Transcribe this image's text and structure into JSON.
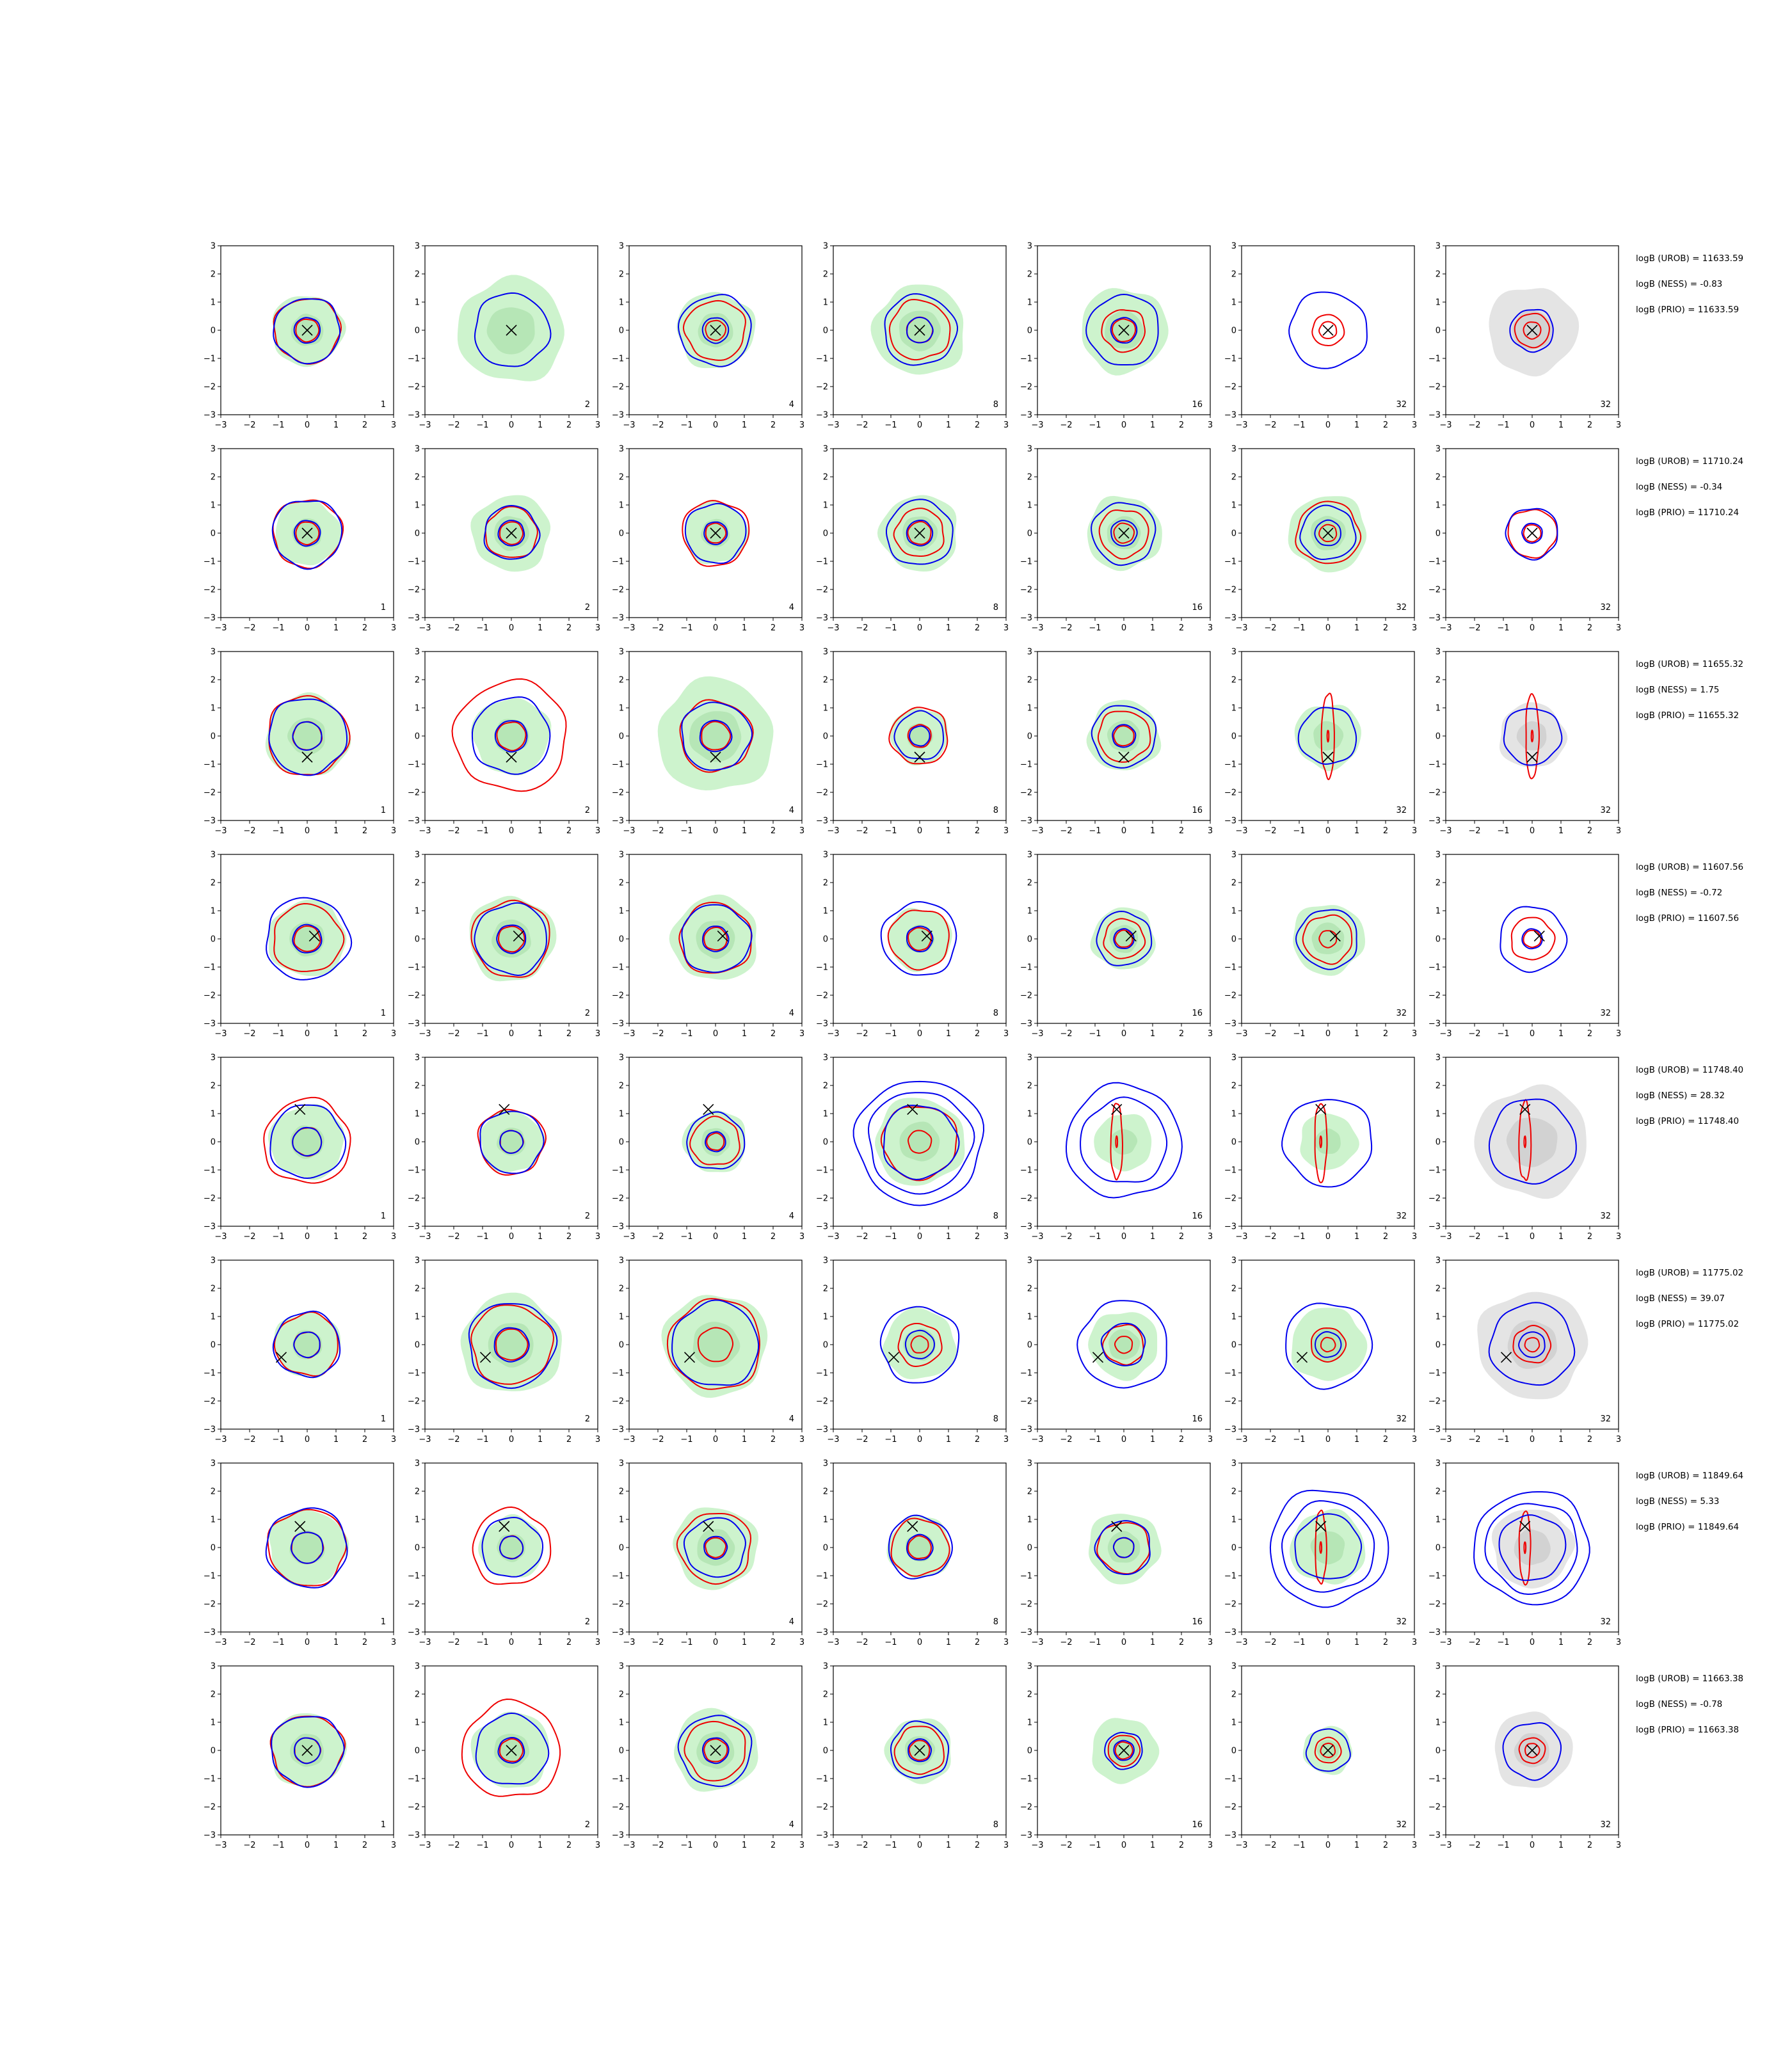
{
  "chart_data": {
    "type": "contour-grid",
    "rows": 8,
    "columns": 7,
    "xlim": [
      -3,
      3
    ],
    "ylim": [
      -3,
      3
    ],
    "x_ticks": [
      -3,
      -2,
      -1,
      0,
      1,
      2,
      3
    ],
    "y_ticks": [
      -3,
      -2,
      -1,
      0,
      1,
      2,
      3
    ],
    "x_tick_labels": [
      "−3",
      "−2",
      "−1",
      "0",
      "1",
      "2",
      "3"
    ],
    "y_tick_labels": [
      "−3",
      "−2",
      "−1",
      "0",
      "1",
      "2",
      "3"
    ],
    "panel_labels": [
      "1",
      "2",
      "4",
      "8",
      "16",
      "32",
      "32"
    ],
    "colors": {
      "blue_contour": "#0000ee",
      "red_contour": "#ee0000",
      "green_fill": "#cdf3cd",
      "green_fill_dark": "#b6e6b6",
      "grey_fill": "#e4e4e4",
      "grey_fill_dark": "#d2d2d2",
      "marker": "#000000",
      "axis": "#000000"
    },
    "marker_symbol": "×",
    "rows_data": [
      {
        "logB_UROB": "logB (UROB) = 11633.59",
        "logB_NESS": "logB (NESS) = -0.83",
        "logB_PRIO": "logB (PRIO) = 11633.59",
        "marker": [
          0,
          0
        ],
        "panels": [
          {
            "green": 1.25,
            "blue": [
              1.15,
              0.45
            ],
            "red": [
              1.15,
              0.4
            ]
          },
          {
            "green": 1.85,
            "blue": [
              1.3
            ],
            "red": []
          },
          {
            "green": 1.35,
            "blue": [
              1.25,
              0.45
            ],
            "red": [
              1.05,
              0.35
            ]
          },
          {
            "green": 1.6,
            "blue": [
              1.25,
              0.45
            ],
            "red": [
              1.05,
              0.45
            ]
          },
          {
            "green": 1.5,
            "blue": [
              1.25,
              0.45
            ],
            "red": [
              0.75,
              0.4
            ]
          },
          {
            "green": 0.0,
            "blue": [
              1.35
            ],
            "red": [
              0.55,
              0.3
            ]
          },
          {
            "grey": 1.55,
            "blue": [
              0.75
            ],
            "red": [
              0.6,
              0.3
            ]
          }
        ]
      },
      {
        "logB_UROB": "logB (UROB) = 11710.24",
        "logB_NESS": "logB (NESS) = -0.34",
        "logB_PRIO": "logB (PRIO) = 11710.24",
        "marker": [
          0,
          0
        ],
        "panels": [
          {
            "green": 1.15,
            "blue": [
              1.2,
              0.45
            ],
            "red": [
              1.2,
              0.4
            ]
          },
          {
            "green": 1.35,
            "blue": [
              0.95,
              0.45
            ],
            "red": [
              0.9,
              0.4
            ]
          },
          {
            "green": 1.1,
            "blue": [
              1.05,
              0.4
            ],
            "red": [
              1.15,
              0.35
            ]
          },
          {
            "green": 1.35,
            "blue": [
              1.15,
              0.45
            ],
            "red": [
              0.85,
              0.4
            ]
          },
          {
            "green": 1.3,
            "blue": [
              1.1,
              0.45
            ],
            "red": [
              0.85,
              0.35
            ]
          },
          {
            "green": 1.35,
            "blue": [
              0.95,
              0.45
            ],
            "red": [
              1.1,
              0.3
            ]
          },
          {
            "grey": 0.0,
            "blue": [
              0.9,
              0.35
            ],
            "red": [
              0.85,
              0.3
            ]
          }
        ]
      },
      {
        "logB_UROB": "logB (UROB) = 11655.32",
        "logB_NESS": "logB (NESS) = 1.75",
        "logB_PRIO": "logB (PRIO) = 11655.32",
        "marker": [
          0,
          -0.75
        ],
        "panels": [
          {
            "green": 1.45,
            "blue": [
              1.35,
              0.5
            ],
            "red": [
              1.4,
              0.5
            ]
          },
          {
            "green": 1.35,
            "blue": [
              1.35,
              0.55
            ],
            "red": [
              1.95,
              0.5
            ]
          },
          {
            "green": 2.0,
            "blue": [
              1.2,
              0.55
            ],
            "red": [
              1.25,
              0.5
            ]
          },
          {
            "green": 1.0,
            "blue": [
              0.85,
              0.35
            ],
            "red": [
              1.0,
              0.4
            ]
          },
          {
            "green": 1.25,
            "blue": [
              1.1,
              0.4
            ],
            "red": [
              0.9,
              0.35
            ]
          },
          {
            "green": 1.15,
            "blue": [
              1.0
            ],
            "red": [
              1.5,
              0.2
            ]
          },
          {
            "grey": 1.15,
            "blue": [
              1.0
            ],
            "red": [
              1.5,
              0.2
            ]
          }
        ]
      },
      {
        "logB_UROB": "logB (UROB) = 11607.56",
        "logB_NESS": "logB (NESS) = -0.72",
        "logB_PRIO": "logB (PRIO) = 11607.56",
        "marker": [
          0.25,
          0.1
        ],
        "panels": [
          {
            "green": 1.35,
            "blue": [
              1.45,
              0.5
            ],
            "red": [
              1.2,
              0.45
            ]
          },
          {
            "green": 1.5,
            "blue": [
              1.25,
              0.5
            ],
            "red": [
              1.35,
              0.45
            ]
          },
          {
            "green": 1.5,
            "blue": [
              1.2,
              0.45
            ],
            "red": [
              1.25,
              0.4
            ]
          },
          {
            "green": 1.1,
            "blue": [
              1.3,
              0.45
            ],
            "red": [
              1.05,
              0.4
            ]
          },
          {
            "green": 1.1,
            "blue": [
              0.95,
              0.35
            ],
            "red": [
              0.7,
              0.3
            ]
          },
          {
            "green": 1.25,
            "blue": [
              1.05
            ],
            "red": [
              0.85,
              0.3
            ]
          },
          {
            "grey": 0.0,
            "blue": [
              1.15,
              0.35
            ],
            "red": [
              0.75,
              0.3
            ]
          }
        ]
      },
      {
        "logB_UROB": "logB (UROB) = 11748.40",
        "logB_NESS": "logB (NESS) = 28.32",
        "logB_PRIO": "logB (PRIO) = 11748.40",
        "marker": [
          -0.25,
          1.15
        ],
        "panels": [
          {
            "green": 1.3,
            "blue": [
              1.3,
              0.5
            ],
            "red": [
              1.5,
              0.5
            ]
          },
          {
            "green": 1.1,
            "blue": [
              1.1,
              0.4
            ],
            "red": [
              1.15,
              0.4
            ]
          },
          {
            "green": 1.1,
            "blue": [
              1.0,
              0.35
            ],
            "red": [
              0.85,
              0.3
            ]
          },
          {
            "green": 1.55,
            "blue": [
              2.2,
              1.8,
              1.3
            ],
            "red": [
              1.3,
              0.4
            ]
          },
          {
            "green": 1.0,
            "blue": [
              2.0,
              1.5
            ],
            "red": [
              1.35,
              0.2
            ]
          },
          {
            "green": 1.0,
            "blue": [
              1.55
            ],
            "red": [
              1.4,
              0.2
            ]
          },
          {
            "grey": 1.95,
            "blue": [
              1.5
            ],
            "red": [
              1.4,
              0.2
            ]
          }
        ]
      },
      {
        "logB_UROB": "logB (UROB) = 11775.02",
        "logB_NESS": "logB (NESS) = 39.07",
        "logB_PRIO": "logB (PRIO) = 11775.02",
        "marker": [
          -0.9,
          -0.45
        ],
        "panels": [
          {
            "green": 1.15,
            "blue": [
              1.15,
              0.45
            ],
            "red": [
              1.1,
              0.45
            ]
          },
          {
            "green": 1.75,
            "blue": [
              1.5,
              0.6
            ],
            "red": [
              1.4,
              0.55
            ]
          },
          {
            "green": 1.8,
            "blue": [
              1.5
            ],
            "red": [
              1.6,
              0.6
            ]
          },
          {
            "green": 1.25,
            "blue": [
              1.35,
              0.5
            ],
            "red": [
              0.75,
              0.3
            ]
          },
          {
            "green": 1.2,
            "blue": [
              1.55,
              0.75
            ],
            "red": [
              0.7,
              0.3
            ]
          },
          {
            "green": 1.3,
            "blue": [
              1.5,
              0.45
            ],
            "red": [
              0.6,
              0.25
            ]
          },
          {
            "grey": 1.9,
            "blue": [
              1.45,
              0.45
            ],
            "red": [
              0.65,
              0.25
            ]
          }
        ]
      },
      {
        "logB_UROB": "logB (UROB) = 11849.64",
        "logB_NESS": "logB (NESS) = 5.33",
        "logB_PRIO": "logB (PRIO) = 11849.64",
        "marker": [
          -0.25,
          0.75
        ],
        "panels": [
          {
            "green": 1.35,
            "blue": [
              1.4,
              0.55
            ],
            "red": [
              1.35,
              0.55
            ]
          },
          {
            "green": 1.1,
            "blue": [
              1.05,
              0.4
            ],
            "red": [
              1.35,
              0.4
            ]
          },
          {
            "green": 1.45,
            "blue": [
              1.05,
              0.4
            ],
            "red": [
              1.25,
              0.35
            ]
          },
          {
            "green": 1.1,
            "blue": [
              1.1,
              0.45
            ],
            "red": [
              1.0,
              0.4
            ]
          },
          {
            "green": 1.25,
            "blue": [
              0.95,
              0.35
            ],
            "red": [
              0.9,
              0.35
            ]
          },
          {
            "green": 1.3,
            "blue": [
              2.05,
              1.6,
              1.15
            ],
            "red": [
              1.3,
              0.2
            ]
          },
          {
            "grey": 1.4,
            "blue": [
              2.0,
              1.6,
              1.15
            ],
            "red": [
              1.3,
              0.2
            ]
          }
        ]
      },
      {
        "logB_UROB": "logB (UROB) = 11663.38",
        "logB_NESS": "logB (NESS) = -0.78",
        "logB_PRIO": "logB (PRIO) = 11663.38",
        "marker": [
          0,
          0
        ],
        "panels": [
          {
            "green": 1.3,
            "blue": [
              1.25,
              0.45
            ],
            "red": [
              1.25,
              0.45
            ]
          },
          {
            "green": 1.35,
            "blue": [
              1.25,
              0.45
            ],
            "red": [
              1.7,
              0.4
            ]
          },
          {
            "green": 1.45,
            "blue": [
              1.25,
              0.45
            ],
            "red": [
              1.05,
              0.4
            ]
          },
          {
            "green": 1.15,
            "blue": [
              1.0,
              0.4
            ],
            "red": [
              0.85,
              0.35
            ]
          },
          {
            "green": 1.15,
            "blue": [
              0.65,
              0.35
            ],
            "red": [
              0.55,
              0.3
            ]
          },
          {
            "green": 0.85,
            "blue": [
              0.75
            ],
            "red": [
              0.45,
              0.25
            ]
          },
          {
            "grey": 1.35,
            "blue": [
              1.0
            ],
            "red": [
              0.45,
              0.25
            ]
          }
        ]
      }
    ]
  }
}
